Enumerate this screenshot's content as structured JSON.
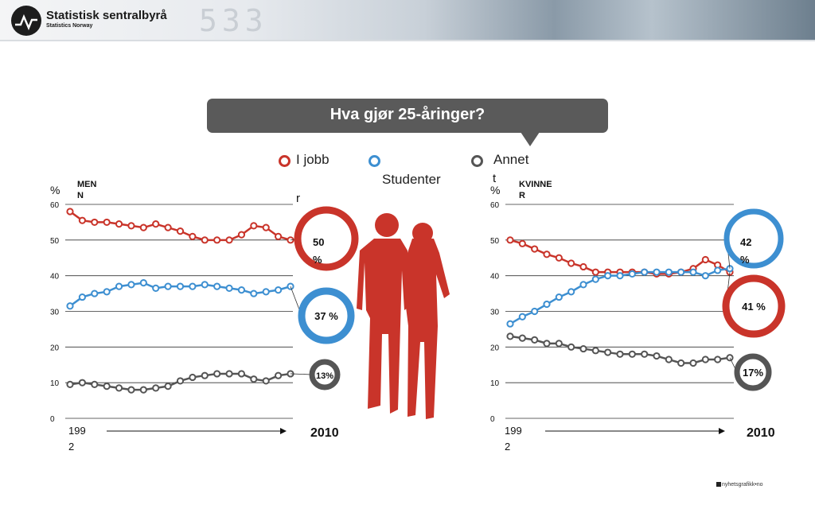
{
  "header": {
    "brand": "Statistisk sentralbyrå",
    "brand_sub": "Statistics Norway",
    "banner_digits": "533"
  },
  "title": "Hva gjør 25-åringer?",
  "legend": [
    {
      "label": "I jobb",
      "color": "#c9342a"
    },
    {
      "label": "Studenter",
      "color": "#3d8fd1"
    },
    {
      "label": "Annet",
      "color": "#555555"
    }
  ],
  "credit": "nyhetsgrafikk•no",
  "colors": {
    "jobb": "#c9342a",
    "student": "#3d8fd1",
    "annet": "#555555"
  },
  "chart_data": [
    {
      "type": "line",
      "panel": "MENN",
      "ylabel": "%",
      "ylim": [
        0,
        60
      ],
      "yticks": [
        0,
        10,
        20,
        30,
        40,
        50,
        60
      ],
      "x_start": "1992",
      "x_end": "2010",
      "x": [
        1992,
        1993,
        1994,
        1995,
        1996,
        1997,
        1998,
        1999,
        2000,
        2001,
        2002,
        2003,
        2004,
        2005,
        2006,
        2007,
        2008,
        2009,
        2010
      ],
      "series": [
        {
          "name": "I jobb",
          "end_label": "50 %",
          "values": [
            58,
            55.5,
            55,
            55,
            54.5,
            54,
            53.5,
            54.5,
            53.5,
            52.5,
            51,
            50,
            50,
            50,
            51.5,
            54,
            53.5,
            51,
            50
          ]
        },
        {
          "name": "Studenter",
          "end_label": "37 %",
          "values": [
            31.5,
            34,
            35,
            35.5,
            37,
            37.5,
            38,
            36.5,
            37,
            37,
            37,
            37.5,
            37,
            36.5,
            36,
            35,
            35.5,
            36,
            37
          ]
        },
        {
          "name": "Annet",
          "end_label": "13%",
          "values": [
            9.5,
            10,
            9.5,
            9,
            8.5,
            8,
            8,
            8.5,
            9,
            10.5,
            11.5,
            12,
            12.5,
            12.5,
            12.5,
            11,
            10.5,
            12,
            12.5
          ]
        }
      ]
    },
    {
      "type": "line",
      "panel": "KVINNER",
      "ylabel": "%",
      "ylim": [
        0,
        60
      ],
      "yticks": [
        0,
        10,
        20,
        30,
        40,
        50,
        60
      ],
      "x_start": "1992",
      "x_end": "2010",
      "x": [
        1992,
        1993,
        1994,
        1995,
        1996,
        1997,
        1998,
        1999,
        2000,
        2001,
        2002,
        2003,
        2004,
        2005,
        2006,
        2007,
        2008,
        2009,
        2010
      ],
      "series": [
        {
          "name": "I jobb",
          "end_label": "41 %",
          "values": [
            50,
            49,
            47.5,
            46,
            45,
            43.5,
            42.5,
            41,
            41,
            41,
            41,
            41,
            40.5,
            40.5,
            41,
            42,
            44.5,
            43,
            41
          ]
        },
        {
          "name": "Studenter",
          "end_label": "42 %",
          "values": [
            26.5,
            28.5,
            30,
            32,
            34,
            35.5,
            37.5,
            39,
            40,
            40,
            40.5,
            41,
            41,
            41,
            41,
            41,
            40,
            41.5,
            42
          ]
        },
        {
          "name": "Annet",
          "end_label": "17%",
          "values": [
            23,
            22.5,
            22,
            21,
            21,
            20,
            19.5,
            19,
            18.5,
            18,
            18,
            18,
            17.5,
            16.5,
            15.5,
            15.5,
            16.5,
            16.5,
            17
          ]
        }
      ]
    }
  ]
}
